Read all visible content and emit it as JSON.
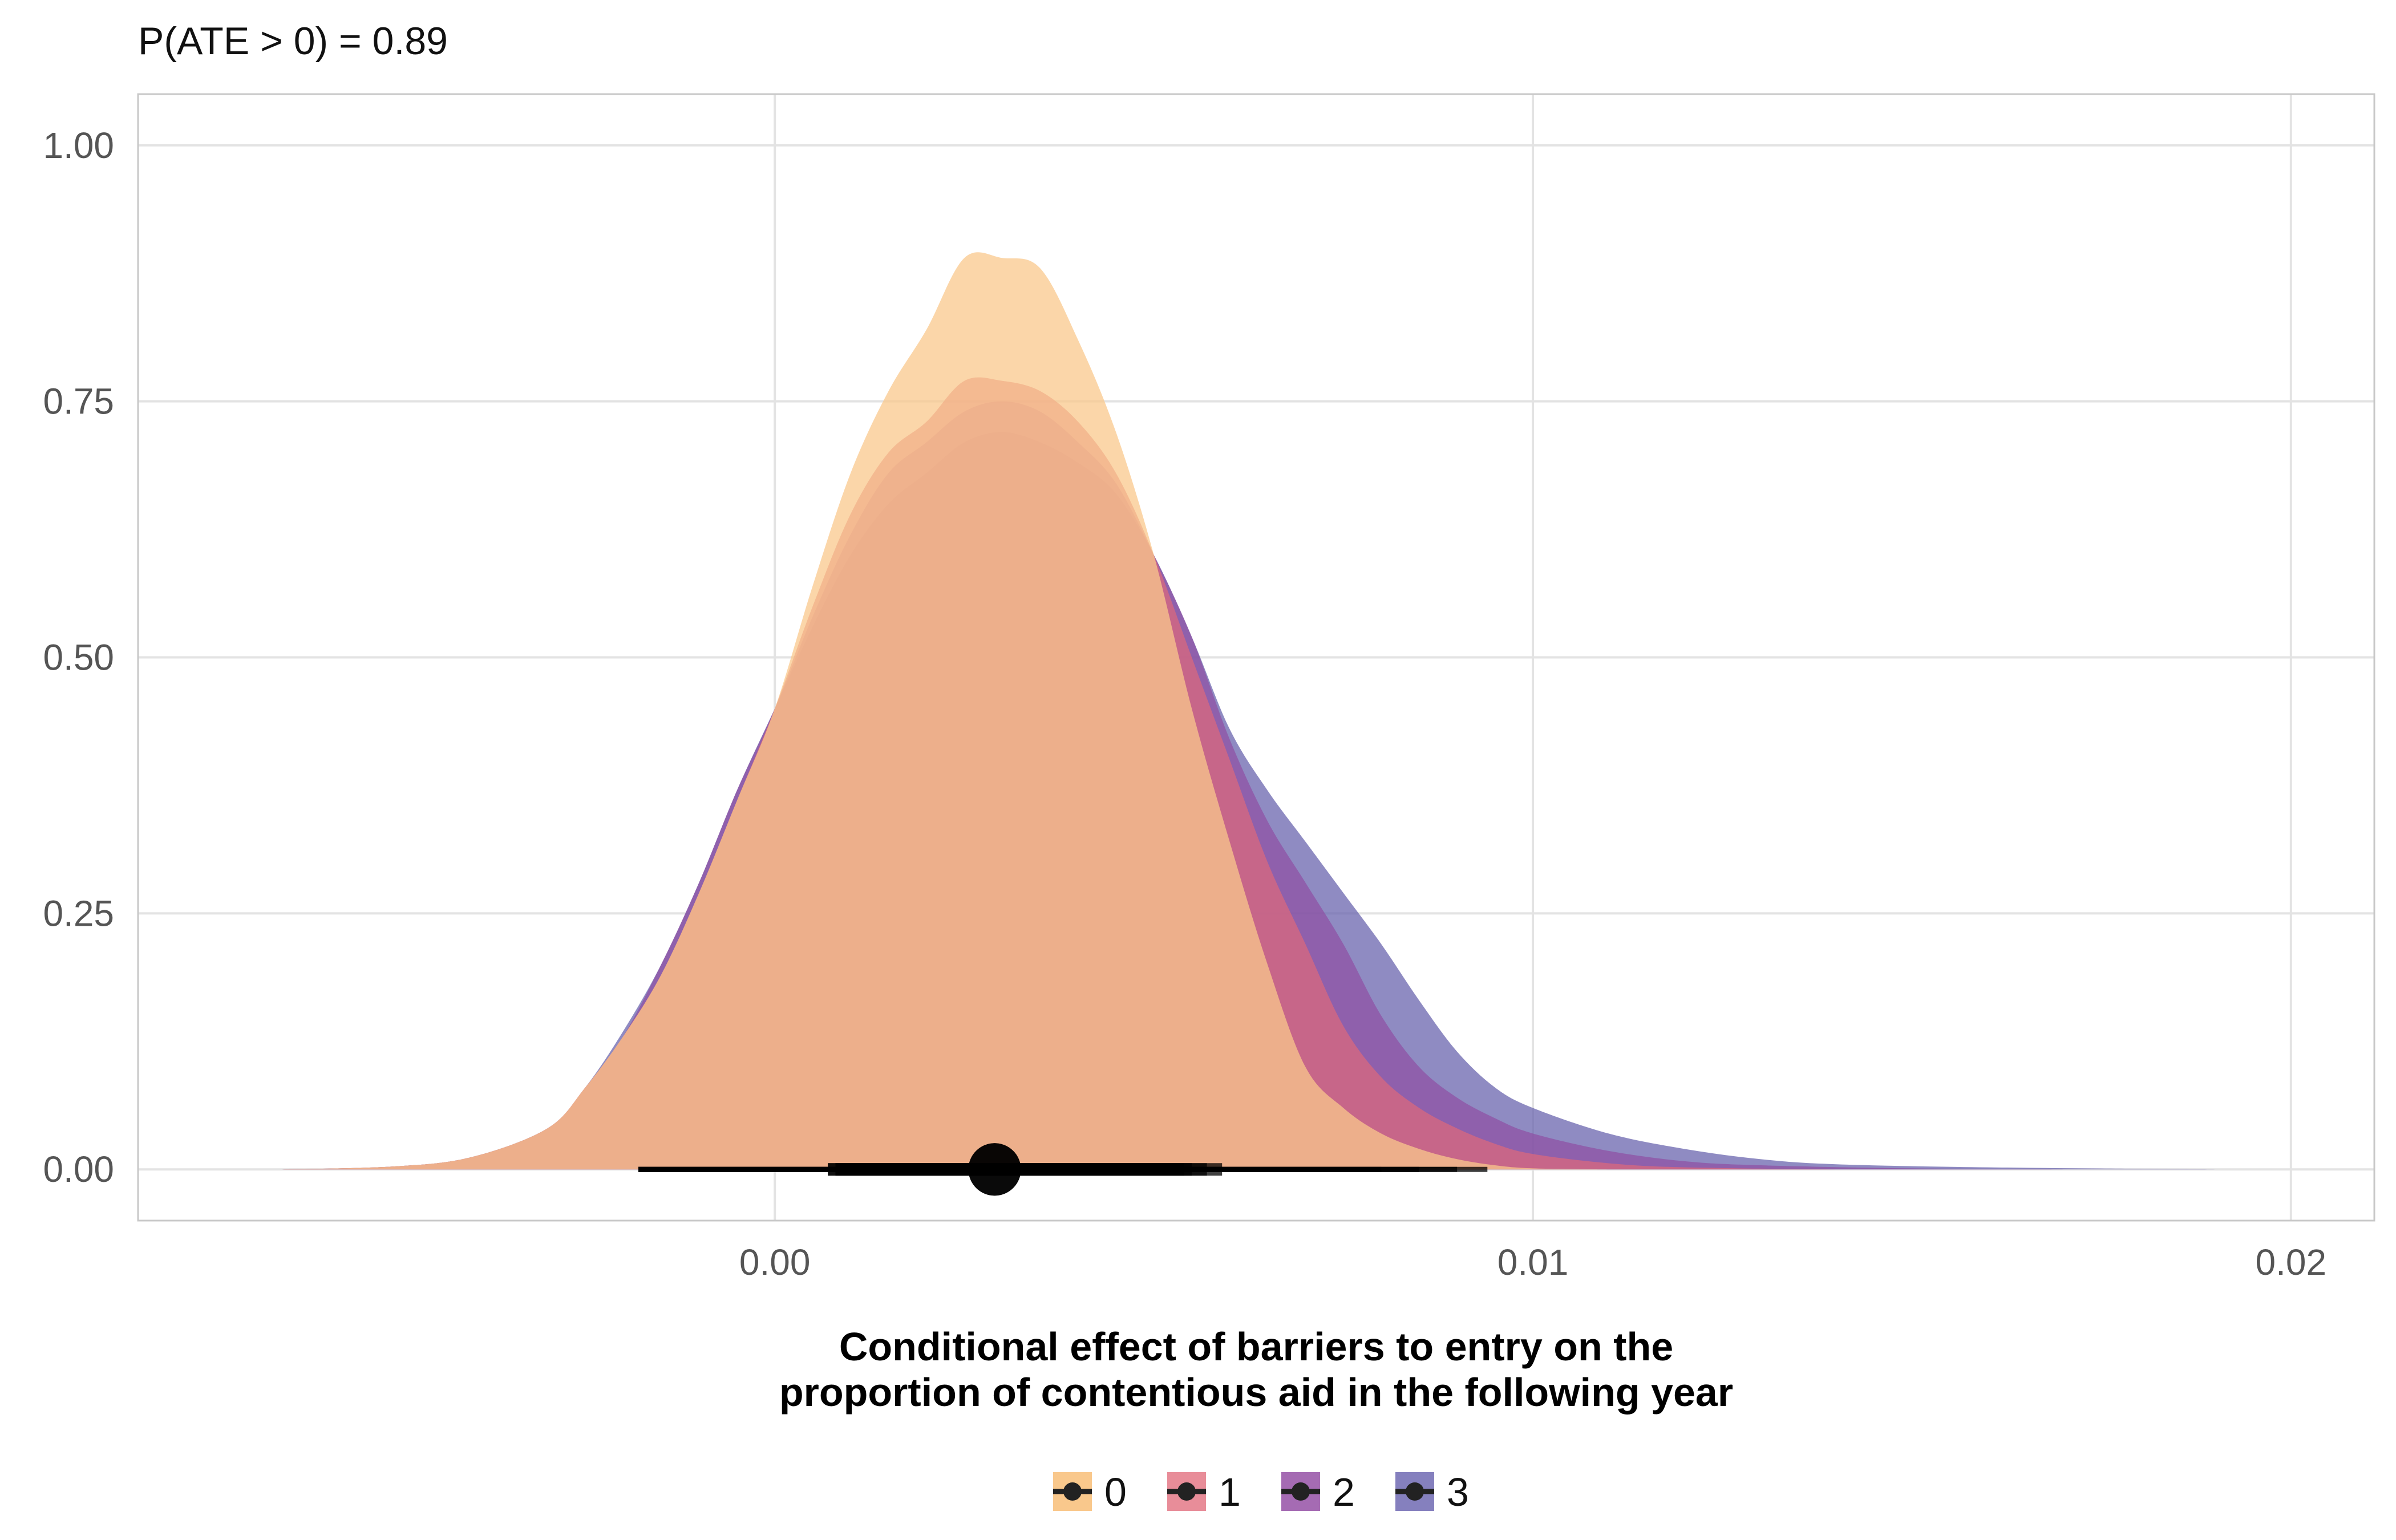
{
  "subtitle": "P(ATE > 0) = 0.89",
  "chart_data": {
    "type": "area",
    "subtype": "posterior density (half-eye) plot",
    "xlabel_lines": [
      "Conditional effect of barriers to entry on the",
      "proportion of contentious aid in the following year"
    ],
    "ylabel": "",
    "xlim": [
      -0.0084,
      0.0211
    ],
    "ylim": [
      -0.05,
      1.05
    ],
    "x_ticks": [
      0.0,
      0.01,
      0.02
    ],
    "x_tick_labels": [
      "0.00",
      "0.01",
      "0.02"
    ],
    "y_ticks": [
      0.0,
      0.25,
      0.5,
      0.75,
      1.0
    ],
    "y_tick_labels": [
      "0.00",
      "0.25",
      "0.50",
      "0.75",
      "1.00"
    ],
    "grid": true,
    "legend_position": "bottom",
    "series": [
      {
        "name": "3",
        "color": "#6A64AD",
        "opacity": 0.75,
        "density": [
          [
            -0.0065,
            0.0
          ],
          [
            -0.005,
            0.003
          ],
          [
            -0.004,
            0.012
          ],
          [
            -0.003,
            0.04
          ],
          [
            -0.0025,
            0.08
          ],
          [
            -0.002,
            0.135
          ],
          [
            -0.0015,
            0.2
          ],
          [
            -0.001,
            0.28
          ],
          [
            -0.0005,
            0.37
          ],
          [
            0.0,
            0.45
          ],
          [
            0.0005,
            0.53
          ],
          [
            0.001,
            0.6
          ],
          [
            0.0015,
            0.65
          ],
          [
            0.002,
            0.68
          ],
          [
            0.0025,
            0.71
          ],
          [
            0.003,
            0.72
          ],
          [
            0.0035,
            0.71
          ],
          [
            0.004,
            0.69
          ],
          [
            0.0045,
            0.66
          ],
          [
            0.005,
            0.6
          ],
          [
            0.0055,
            0.52
          ],
          [
            0.006,
            0.43
          ],
          [
            0.0065,
            0.37
          ],
          [
            0.007,
            0.32
          ],
          [
            0.0075,
            0.27
          ],
          [
            0.008,
            0.22
          ],
          [
            0.0085,
            0.165
          ],
          [
            0.009,
            0.115
          ],
          [
            0.0095,
            0.08
          ],
          [
            0.01,
            0.06
          ],
          [
            0.011,
            0.035
          ],
          [
            0.012,
            0.02
          ],
          [
            0.013,
            0.01
          ],
          [
            0.014,
            0.005
          ],
          [
            0.016,
            0.002
          ],
          [
            0.019,
            0.0
          ]
        ],
        "interval_66": [
          0.0007,
          0.0055
        ],
        "interval_95": [
          -0.0018,
          0.0094
        ]
      },
      {
        "name": "2",
        "color": "#8E4EA3",
        "opacity": 0.7,
        "density": [
          [
            -0.0065,
            0.0
          ],
          [
            -0.005,
            0.003
          ],
          [
            -0.004,
            0.012
          ],
          [
            -0.003,
            0.04
          ],
          [
            -0.0025,
            0.08
          ],
          [
            -0.002,
            0.13
          ],
          [
            -0.0015,
            0.2
          ],
          [
            -0.001,
            0.28
          ],
          [
            -0.0005,
            0.37
          ],
          [
            0.0,
            0.45
          ],
          [
            0.0005,
            0.54
          ],
          [
            0.001,
            0.62
          ],
          [
            0.0015,
            0.68
          ],
          [
            0.002,
            0.71
          ],
          [
            0.0025,
            0.74
          ],
          [
            0.003,
            0.75
          ],
          [
            0.0035,
            0.74
          ],
          [
            0.004,
            0.71
          ],
          [
            0.0045,
            0.67
          ],
          [
            0.005,
            0.6
          ],
          [
            0.0055,
            0.52
          ],
          [
            0.006,
            0.42
          ],
          [
            0.0065,
            0.34
          ],
          [
            0.007,
            0.28
          ],
          [
            0.0075,
            0.22
          ],
          [
            0.008,
            0.15
          ],
          [
            0.0085,
            0.1
          ],
          [
            0.009,
            0.07
          ],
          [
            0.0095,
            0.05
          ],
          [
            0.01,
            0.035
          ],
          [
            0.011,
            0.018
          ],
          [
            0.012,
            0.008
          ],
          [
            0.013,
            0.004
          ],
          [
            0.015,
            0.001
          ],
          [
            0.017,
            0.0
          ]
        ],
        "interval_66": [
          0.0007,
          0.0057
        ],
        "interval_95": [
          -0.0018,
          0.009
        ]
      },
      {
        "name": "1",
        "color": "#D9687E",
        "opacity": 0.75,
        "density": [
          [
            -0.0065,
            0.0
          ],
          [
            -0.005,
            0.003
          ],
          [
            -0.004,
            0.012
          ],
          [
            -0.003,
            0.04
          ],
          [
            -0.0025,
            0.08
          ],
          [
            -0.002,
            0.13
          ],
          [
            -0.0015,
            0.19
          ],
          [
            -0.001,
            0.27
          ],
          [
            -0.0005,
            0.36
          ],
          [
            0.0,
            0.45
          ],
          [
            0.0005,
            0.55
          ],
          [
            0.001,
            0.64
          ],
          [
            0.0015,
            0.7
          ],
          [
            0.002,
            0.73
          ],
          [
            0.0025,
            0.77
          ],
          [
            0.003,
            0.77
          ],
          [
            0.0035,
            0.76
          ],
          [
            0.004,
            0.73
          ],
          [
            0.0045,
            0.68
          ],
          [
            0.005,
            0.6
          ],
          [
            0.0055,
            0.5
          ],
          [
            0.006,
            0.4
          ],
          [
            0.0065,
            0.3
          ],
          [
            0.007,
            0.22
          ],
          [
            0.0075,
            0.14
          ],
          [
            0.008,
            0.09
          ],
          [
            0.0085,
            0.06
          ],
          [
            0.009,
            0.04
          ],
          [
            0.0095,
            0.025
          ],
          [
            0.01,
            0.015
          ],
          [
            0.011,
            0.006
          ],
          [
            0.012,
            0.002
          ],
          [
            0.014,
            0.0
          ]
        ],
        "interval_66": [
          0.0008,
          0.0059
        ],
        "interval_95": [
          -0.0018,
          0.0085
        ]
      },
      {
        "name": "0",
        "color": "#F9C88C",
        "opacity": 0.75,
        "density": [
          [
            -0.0065,
            0.0
          ],
          [
            -0.005,
            0.003
          ],
          [
            -0.004,
            0.012
          ],
          [
            -0.003,
            0.04
          ],
          [
            -0.0025,
            0.08
          ],
          [
            -0.002,
            0.13
          ],
          [
            -0.0015,
            0.19
          ],
          [
            -0.001,
            0.27
          ],
          [
            -0.0005,
            0.36
          ],
          [
            0.0,
            0.45
          ],
          [
            0.0005,
            0.57
          ],
          [
            0.001,
            0.68
          ],
          [
            0.0015,
            0.76
          ],
          [
            0.002,
            0.82
          ],
          [
            0.0025,
            0.89
          ],
          [
            0.003,
            0.89
          ],
          [
            0.0035,
            0.88
          ],
          [
            0.004,
            0.81
          ],
          [
            0.0045,
            0.72
          ],
          [
            0.005,
            0.6
          ],
          [
            0.0055,
            0.45
          ],
          [
            0.006,
            0.32
          ],
          [
            0.0065,
            0.2
          ],
          [
            0.007,
            0.1
          ],
          [
            0.0075,
            0.06
          ],
          [
            0.008,
            0.035
          ],
          [
            0.0085,
            0.02
          ],
          [
            0.009,
            0.01
          ],
          [
            0.0095,
            0.004
          ],
          [
            0.01,
            0.001
          ],
          [
            0.011,
            0.0
          ]
        ],
        "interval_66": [
          0.0008,
          0.0054
        ],
        "interval_95": [
          -0.0018,
          0.008
        ]
      }
    ],
    "legend": [
      {
        "label": "0",
        "color": "#F9C88C"
      },
      {
        "label": "1",
        "color": "#E88D99"
      },
      {
        "label": "2",
        "color": "#A56BB3"
      },
      {
        "label": "3",
        "color": "#8580BE"
      }
    ],
    "point_estimate": 0.0029
  }
}
